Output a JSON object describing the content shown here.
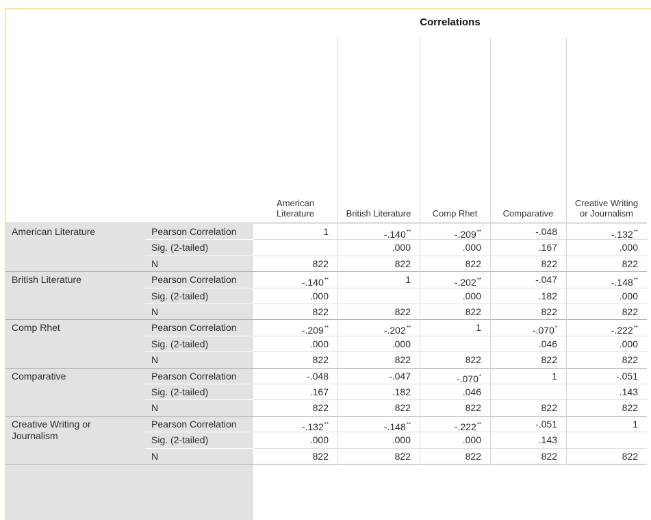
{
  "title": "Correlations",
  "columns": [
    "American Literature",
    "British Literature",
    "Comp Rhet",
    "Comparative",
    "Creative Writing or Journalism"
  ],
  "groups": [
    {
      "label": "American Literature",
      "rows": [
        {
          "stat": "Pearson Correlation",
          "cells": [
            {
              "text": "1"
            },
            {
              "text": "-.140",
              "sig": "**"
            },
            {
              "text": "-.209",
              "sig": "**"
            },
            {
              "text": "-.048"
            },
            {
              "text": "-.132",
              "sig": "**"
            }
          ]
        },
        {
          "stat": "Sig. (2-tailed)",
          "cells": [
            null,
            {
              "text": ".000"
            },
            {
              "text": ".000"
            },
            {
              "text": ".167"
            },
            {
              "text": ".000"
            }
          ]
        },
        {
          "stat": "N",
          "cells": [
            {
              "text": "822"
            },
            {
              "text": "822"
            },
            {
              "text": "822"
            },
            {
              "text": "822"
            },
            {
              "text": "822"
            }
          ]
        }
      ]
    },
    {
      "label": "British Literature",
      "rows": [
        {
          "stat": "Pearson Correlation",
          "cells": [
            {
              "text": "-.140",
              "sig": "**"
            },
            {
              "text": "1"
            },
            {
              "text": "-.202",
              "sig": "**"
            },
            {
              "text": "-.047"
            },
            {
              "text": "-.148",
              "sig": "**"
            }
          ]
        },
        {
          "stat": "Sig. (2-tailed)",
          "cells": [
            {
              "text": ".000"
            },
            null,
            {
              "text": ".000"
            },
            {
              "text": ".182"
            },
            {
              "text": ".000"
            }
          ]
        },
        {
          "stat": "N",
          "cells": [
            {
              "text": "822"
            },
            {
              "text": "822"
            },
            {
              "text": "822"
            },
            {
              "text": "822"
            },
            {
              "text": "822"
            }
          ]
        }
      ]
    },
    {
      "label": "Comp Rhet",
      "rows": [
        {
          "stat": "Pearson Correlation",
          "cells": [
            {
              "text": "-.209",
              "sig": "**"
            },
            {
              "text": "-.202",
              "sig": "**"
            },
            {
              "text": "1"
            },
            {
              "text": "-.070",
              "sig": "*"
            },
            {
              "text": "-.222",
              "sig": "**"
            }
          ]
        },
        {
          "stat": "Sig. (2-tailed)",
          "cells": [
            {
              "text": ".000"
            },
            {
              "text": ".000"
            },
            null,
            {
              "text": ".046"
            },
            {
              "text": ".000"
            }
          ]
        },
        {
          "stat": "N",
          "cells": [
            {
              "text": "822"
            },
            {
              "text": "822"
            },
            {
              "text": "822"
            },
            {
              "text": "822"
            },
            {
              "text": "822"
            }
          ]
        }
      ]
    },
    {
      "label": "Comparative",
      "rows": [
        {
          "stat": "Pearson Correlation",
          "cells": [
            {
              "text": "-.048"
            },
            {
              "text": "-.047"
            },
            {
              "text": "-.070",
              "sig": "*"
            },
            {
              "text": "1"
            },
            {
              "text": "-.051"
            }
          ]
        },
        {
          "stat": "Sig. (2-tailed)",
          "cells": [
            {
              "text": ".167"
            },
            {
              "text": ".182"
            },
            {
              "text": ".046"
            },
            null,
            {
              "text": ".143"
            }
          ]
        },
        {
          "stat": "N",
          "cells": [
            {
              "text": "822"
            },
            {
              "text": "822"
            },
            {
              "text": "822"
            },
            {
              "text": "822"
            },
            {
              "text": "822"
            }
          ]
        }
      ]
    },
    {
      "label": "Creative Writing or Journalism",
      "rows": [
        {
          "stat": "Pearson Correlation",
          "cells": [
            {
              "text": "-.132",
              "sig": "**"
            },
            {
              "text": "-.148",
              "sig": "**"
            },
            {
              "text": "-.222",
              "sig": "**"
            },
            {
              "text": "-.051"
            },
            {
              "text": "1"
            }
          ]
        },
        {
          "stat": "Sig. (2-tailed)",
          "cells": [
            {
              "text": ".000"
            },
            {
              "text": ".000"
            },
            {
              "text": ".000"
            },
            {
              "text": ".143"
            },
            null
          ]
        },
        {
          "stat": "N",
          "cells": [
            {
              "text": "822"
            },
            {
              "text": "822"
            },
            {
              "text": "822"
            },
            {
              "text": "822"
            },
            {
              "text": "822"
            }
          ]
        }
      ]
    }
  ]
}
